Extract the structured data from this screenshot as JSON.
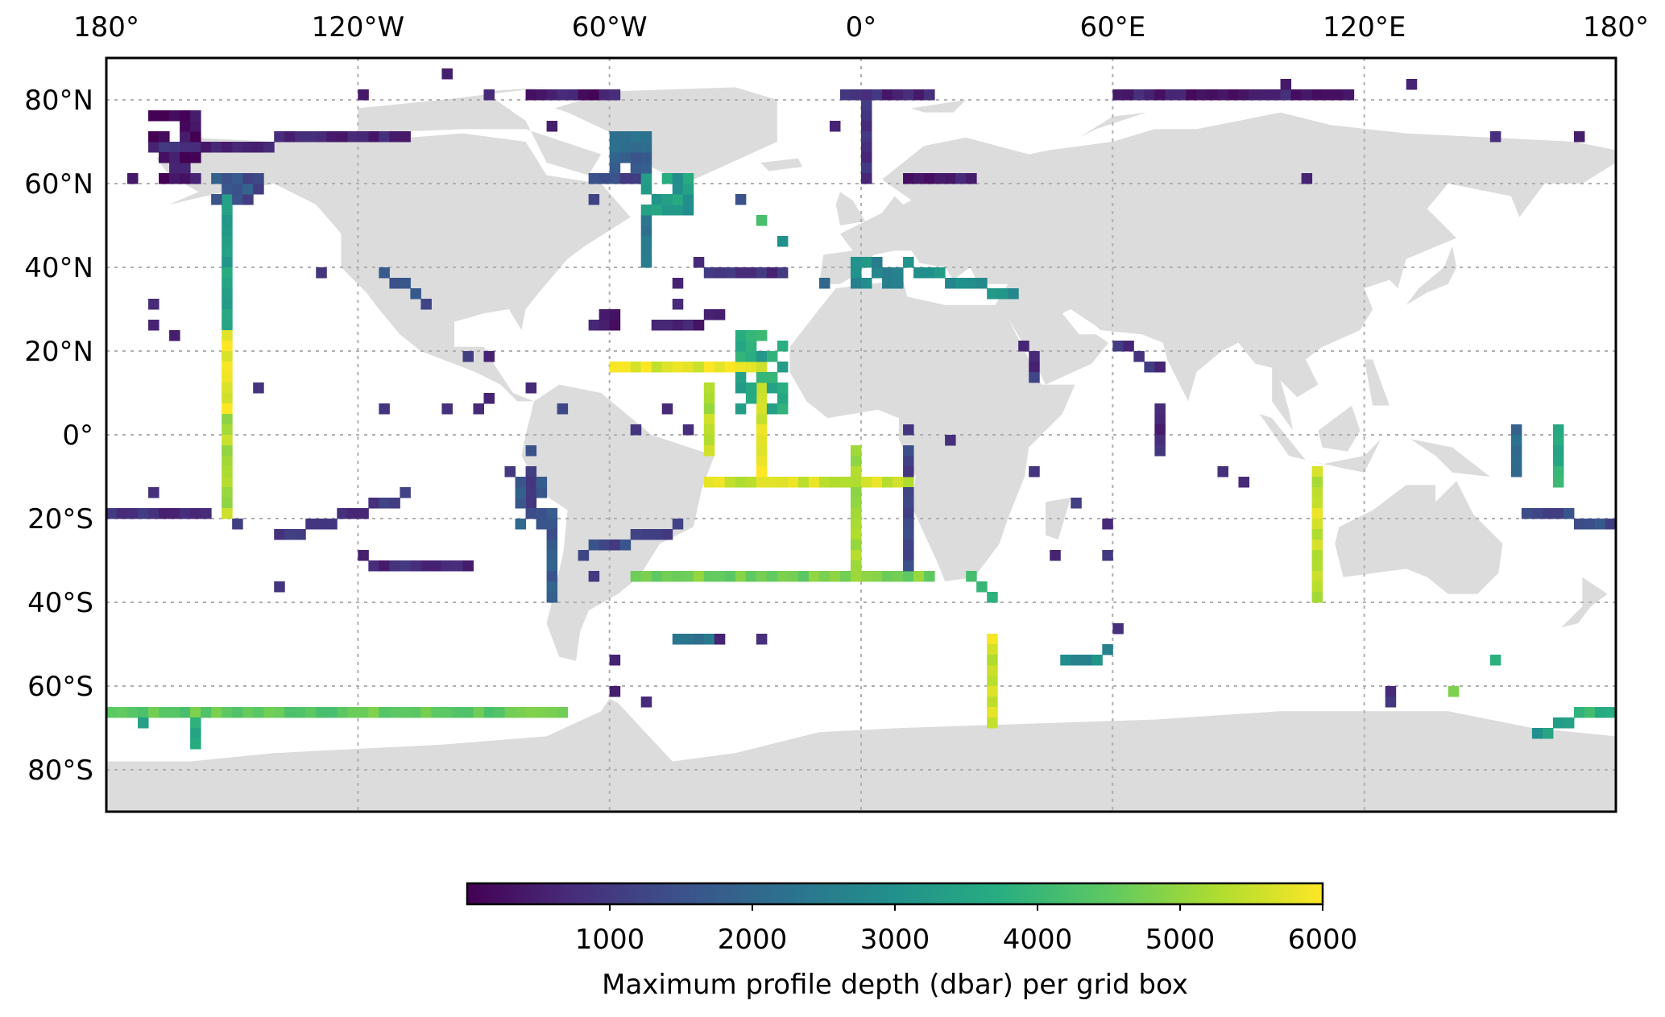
{
  "chart_data": {
    "type": "heatmap",
    "projection": "equirectangular",
    "lon_range": [
      -180,
      180
    ],
    "lat_range": [
      -90,
      90
    ],
    "cell_size_deg": 2.5,
    "lon_ticks": [
      {
        "value": -180,
        "label": "180°"
      },
      {
        "value": -120,
        "label": "120°W"
      },
      {
        "value": -60,
        "label": "60°W"
      },
      {
        "value": 0,
        "label": "0°"
      },
      {
        "value": 60,
        "label": "60°E"
      },
      {
        "value": 120,
        "label": "120°E"
      },
      {
        "value": 180,
        "label": "180°"
      }
    ],
    "lat_ticks": [
      {
        "value": 80,
        "label": "80°N"
      },
      {
        "value": 60,
        "label": "60°N"
      },
      {
        "value": 40,
        "label": "40°N"
      },
      {
        "value": 20,
        "label": "20°N"
      },
      {
        "value": 0,
        "label": "0°"
      },
      {
        "value": -20,
        "label": "20°S"
      },
      {
        "value": -40,
        "label": "40°S"
      },
      {
        "value": -60,
        "label": "60°S"
      },
      {
        "value": -80,
        "label": "80°S"
      }
    ],
    "colorbar": {
      "label": "Maximum profile depth (dbar) per grid box",
      "range": [
        0,
        6000
      ],
      "colormap": "viridis",
      "ticks": [
        {
          "value": 1000,
          "label": "1000"
        },
        {
          "value": 2000,
          "label": "2000"
        },
        {
          "value": 3000,
          "label": "3000"
        },
        {
          "value": 4000,
          "label": "4000"
        },
        {
          "value": 5000,
          "label": "5000"
        },
        {
          "value": 6000,
          "label": "6000"
        }
      ]
    },
    "tracks": [
      {
        "from": [
          -152,
          57
        ],
        "to": [
          -152,
          25
        ],
        "depth": 3400
      },
      {
        "from": [
          -152,
          25
        ],
        "to": [
          -152,
          5
        ],
        "depth": 5900
      },
      {
        "from": [
          -152,
          5
        ],
        "to": [
          -152,
          -18
        ],
        "depth": 5200
      },
      {
        "from": [
          -180,
          -67
        ],
        "to": [
          -72,
          -67
        ],
        "depth": 4500
      },
      {
        "from": [
          -160,
          -67
        ],
        "to": [
          -160,
          -73
        ],
        "depth": 3800
      },
      {
        "from": [
          -172,
          -67
        ],
        "to": [
          -172,
          -70
        ],
        "depth": 3600
      },
      {
        "from": [
          -58,
          15
        ],
        "to": [
          -24,
          15
        ],
        "depth": 5800
      },
      {
        "from": [
          -36,
          -11
        ],
        "to": [
          12,
          -11
        ],
        "depth": 5600
      },
      {
        "from": [
          -53,
          -35
        ],
        "to": [
          17,
          -35
        ],
        "depth": 4800
      },
      {
        "from": [
          -23,
          10
        ],
        "to": [
          -23,
          -10
        ],
        "depth": 5800
      },
      {
        "from": [
          -36,
          10
        ],
        "to": [
          -36,
          -5
        ],
        "depth": 5300
      },
      {
        "from": [
          -1,
          -5
        ],
        "to": [
          -1,
          -32
        ],
        "depth": 5000
      },
      {
        "from": [
          12,
          -5
        ],
        "to": [
          12,
          -32
        ],
        "depth": 1200
      },
      {
        "from": [
          109.5,
          -10
        ],
        "to": [
          109.5,
          -40
        ],
        "depth": 5500
      },
      {
        "from": [
          30,
          -50
        ],
        "to": [
          30,
          -68
        ],
        "depth": 5600
      },
      {
        "from": [
          27,
          -35
        ],
        "to": [
          30,
          -40
        ],
        "depth": 3900
      },
      {
        "from": [
          -180,
          -20
        ],
        "to": [
          -157,
          -20
        ],
        "depth": 800
      },
      {
        "from": [
          158,
          -18
        ],
        "to": [
          180,
          -22
        ],
        "depth": 1400
      },
      {
        "from": [
          166,
          0
        ],
        "to": [
          166,
          -12
        ],
        "depth": 3800
      },
      {
        "from": [
          157,
          2
        ],
        "to": [
          157,
          -8
        ],
        "depth": 2200
      },
      {
        "from": [
          -74,
          -20
        ],
        "to": [
          -74,
          -38
        ],
        "depth": 1600
      },
      {
        "from": [
          -80,
          -10
        ],
        "to": [
          -80,
          -20
        ],
        "depth": 1200
      },
      {
        "from": [
          170,
          -67
        ],
        "to": [
          180,
          -67
        ],
        "depth": 3800
      },
      {
        "from": [
          160,
          -72
        ],
        "to": [
          170,
          -67
        ],
        "depth": 3200
      },
      {
        "from": [
          -120,
          -30
        ],
        "to": [
          -95,
          -32
        ],
        "depth": 700
      },
      {
        "from": [
          -140,
          -25
        ],
        "to": [
          -110,
          -15
        ],
        "depth": 900
      },
      {
        "from": [
          -66,
          -28
        ],
        "to": [
          -45,
          -22
        ],
        "depth": 1300
      },
      {
        "from": [
          -170,
          68
        ],
        "to": [
          -110,
          72
        ],
        "depth": 700
      },
      {
        "from": [
          -80,
          82
        ],
        "to": [
          -60,
          82
        ],
        "depth": 400
      },
      {
        "from": [
          -5,
          82
        ],
        "to": [
          15,
          82
        ],
        "depth": 700
      },
      {
        "from": [
          60,
          80
        ],
        "to": [
          115,
          80
        ],
        "depth": 500
      },
      {
        "from": [
          10,
          60
        ],
        "to": [
          25,
          60
        ],
        "depth": 500
      },
      {
        "from": [
          0,
          80
        ],
        "to": [
          0,
          62
        ],
        "depth": 800
      },
      {
        "from": [
          10,
          40
        ],
        "to": [
          35,
          33
        ],
        "depth": 3000
      },
      {
        "from": [
          60,
          22
        ],
        "to": [
          70,
          15
        ],
        "depth": 900
      },
      {
        "from": [
          70,
          5
        ],
        "to": [
          70,
          -3
        ],
        "depth": 800
      },
      {
        "from": [
          -52,
          52
        ],
        "to": [
          -52,
          40
        ],
        "depth": 2500
      },
      {
        "from": [
          -115,
          38
        ],
        "to": [
          -105,
          32
        ],
        "depth": 1500
      },
      {
        "from": [
          -65,
          60
        ],
        "to": [
          -55,
          62
        ],
        "depth": 1200
      },
      {
        "from": [
          -40,
          40
        ],
        "to": [
          -20,
          38
        ],
        "depth": 800
      },
      {
        "from": [
          -50,
          25
        ],
        "to": [
          -35,
          28
        ],
        "depth": 600
      },
      {
        "from": [
          38,
          22
        ],
        "to": [
          42,
          14
        ],
        "depth": 900
      },
      {
        "from": [
          48,
          -55
        ],
        "to": [
          58,
          -52
        ],
        "depth": 2800
      },
      {
        "from": [
          -43,
          -48
        ],
        "to": [
          -37,
          -50
        ],
        "depth": 2200
      }
    ],
    "blocks": [
      {
        "lon": [
          -170,
          -158
        ],
        "lat": [
          61,
          77
        ],
        "depth": 200
      },
      {
        "lon": [
          -1,
          10
        ],
        "lat": [
          37,
          43
        ],
        "depth": 2800
      },
      {
        "lon": [
          -28,
          -17
        ],
        "lat": [
          6,
          24
        ],
        "depth": 3600
      },
      {
        "lon": [
          -52,
          -42
        ],
        "lat": [
          53,
          62
        ],
        "depth": 3300
      },
      {
        "lon": [
          -60,
          -52
        ],
        "lat": [
          64,
          72
        ],
        "depth": 2000
      },
      {
        "lon": [
          -65,
          -58
        ],
        "lat": [
          26,
          30
        ],
        "depth": 500
      },
      {
        "lon": [
          -155,
          -145
        ],
        "lat": [
          55,
          62
        ],
        "depth": 1500
      },
      {
        "lon": [
          -82,
          -76
        ],
        "lat": [
          -12,
          -22
        ],
        "depth": 1800
      }
    ],
    "cells": [
      [
        -163,
        24,
        500
      ],
      [
        -168,
        30,
        700
      ],
      [
        -130,
        38,
        900
      ],
      [
        -95,
        19,
        1100
      ],
      [
        -88,
        8,
        600
      ],
      [
        -115,
        5,
        900
      ],
      [
        -100,
        5,
        800
      ],
      [
        -92,
        5,
        700
      ],
      [
        -55,
        2,
        900
      ],
      [
        -47,
        5,
        700
      ],
      [
        -42,
        0,
        800
      ],
      [
        -88,
        18,
        600
      ],
      [
        -78,
        12,
        700
      ],
      [
        -60,
        -55,
        600
      ],
      [
        -60,
        -62,
        500
      ],
      [
        -52,
        -65,
        700
      ],
      [
        -25,
        -48,
        800
      ],
      [
        -25,
        -50,
        900
      ],
      [
        -35,
        -50,
        600
      ],
      [
        -65,
        -35,
        1000
      ],
      [
        10,
        0,
        900
      ],
      [
        -140,
        -37,
        900
      ],
      [
        -150,
        -22,
        1100
      ],
      [
        -170,
        25,
        600
      ],
      [
        -145,
        10,
        900
      ],
      [
        90,
        -12,
        700
      ],
      [
        105,
        60,
        600
      ],
      [
        150,
        70,
        800
      ],
      [
        170,
        70,
        500
      ],
      [
        -175,
        60,
        400
      ],
      [
        -30,
        55,
        1500
      ],
      [
        -25,
        50,
        4200
      ],
      [
        -20,
        45,
        3000
      ],
      [
        -10,
        35,
        2000
      ],
      [
        20,
        -2,
        800
      ],
      [
        -72,
        5,
        1300
      ],
      [
        -78,
        -5,
        1500
      ],
      [
        -85,
        -8,
        1000
      ],
      [
        -170,
        -15,
        800
      ],
      [
        150,
        -55,
        3800
      ],
      [
        140,
        -62,
        4800
      ],
      [
        125,
        -63,
        1000
      ],
      [
        127,
        -62,
        700
      ],
      [
        60,
        -47,
        800
      ],
      [
        52,
        -17,
        1100
      ],
      [
        58,
        -22,
        700
      ],
      [
        40,
        -10,
        900
      ],
      [
        58,
        -30,
        1000
      ],
      [
        45,
        -30,
        600
      ],
      [
        85,
        -8,
        800
      ],
      [
        -6,
        73,
        600
      ],
      [
        100,
        84,
        400
      ],
      [
        130,
        84,
        600
      ],
      [
        -120,
        82,
        400
      ],
      [
        -100,
        85,
        500
      ],
      [
        -90,
        80,
        700
      ],
      [
        -75,
        73,
        500
      ],
      [
        -65,
        55,
        1200
      ],
      [
        -43,
        32,
        700
      ],
      [
        -45,
        35,
        600
      ]
    ]
  }
}
